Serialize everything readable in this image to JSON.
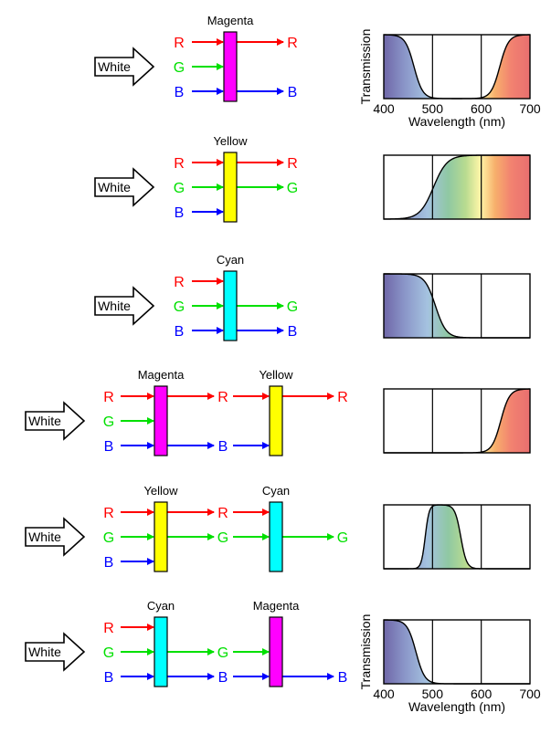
{
  "colors": {
    "R": "#ff0000",
    "G": "#00e000",
    "B": "#0000ff",
    "Magenta": "#ff00ff",
    "Yellow": "#ffff00",
    "Cyan": "#00ffff"
  },
  "input_label": "White",
  "axis": {
    "ylabel": "Transmission",
    "xlabel": "Wavelength (nm)",
    "ticks": [
      "400",
      "500",
      "600",
      "700"
    ]
  },
  "rows": [
    {
      "id": "magenta",
      "filters": [
        "Magenta"
      ],
      "inputs": [
        "R",
        "G",
        "B"
      ],
      "stages": [
        [
          "R",
          "B"
        ]
      ],
      "transmission_curve": "magenta",
      "show_axes": true
    },
    {
      "id": "yellow",
      "filters": [
        "Yellow"
      ],
      "inputs": [
        "R",
        "G",
        "B"
      ],
      "stages": [
        [
          "R",
          "G"
        ]
      ],
      "transmission_curve": "yellow",
      "show_axes": false
    },
    {
      "id": "cyan",
      "filters": [
        "Cyan"
      ],
      "inputs": [
        "R",
        "G",
        "B"
      ],
      "stages": [
        [
          "G",
          "B"
        ]
      ],
      "transmission_curve": "cyan",
      "show_axes": false
    },
    {
      "id": "magenta-yellow",
      "filters": [
        "Magenta",
        "Yellow"
      ],
      "inputs": [
        "R",
        "G",
        "B"
      ],
      "stages": [
        [
          "R",
          "B"
        ],
        [
          "R"
        ]
      ],
      "transmission_curve": "red",
      "show_axes": false
    },
    {
      "id": "yellow-cyan",
      "filters": [
        "Yellow",
        "Cyan"
      ],
      "inputs": [
        "R",
        "G",
        "B"
      ],
      "stages": [
        [
          "R",
          "G"
        ],
        [
          "G"
        ]
      ],
      "transmission_curve": "green",
      "show_axes": false
    },
    {
      "id": "cyan-magenta",
      "filters": [
        "Cyan",
        "Magenta"
      ],
      "inputs": [
        "R",
        "G",
        "B"
      ],
      "stages": [
        [
          "G",
          "B"
        ],
        [
          "B"
        ]
      ],
      "transmission_curve": "blue",
      "show_axes": true
    }
  ]
}
